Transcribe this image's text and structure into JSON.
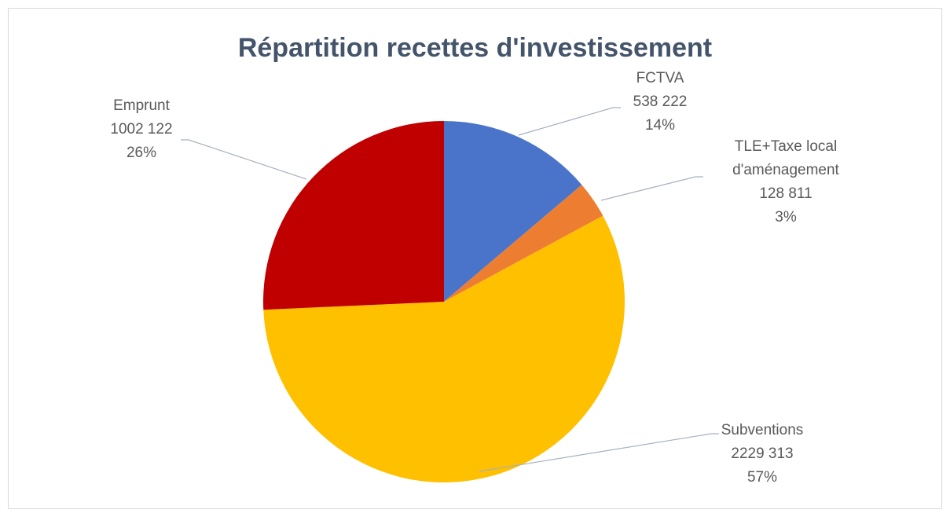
{
  "chart_data": {
    "type": "pie",
    "title": "Répartition recettes d'investissement",
    "categories": [
      "FCTVA",
      "TLE+Taxe local d'aménagement",
      "Subventions",
      "Emprunt"
    ],
    "values": [
      538222,
      128811,
      2229313,
      1002122
    ],
    "value_labels": [
      "538 222",
      "128 811",
      "2229 313",
      "1002 122"
    ],
    "percent_labels": [
      "14%",
      "3%",
      "57%",
      "26%"
    ],
    "colors": [
      "#4a74c9",
      "#ed7d31",
      "#ffc000",
      "#c00000"
    ]
  }
}
